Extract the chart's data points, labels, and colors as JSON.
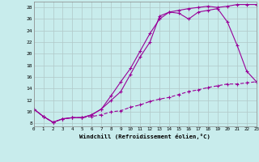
{
  "xlabel": "Windchill (Refroidissement éolien,°C)",
  "bg_color": "#c8ecec",
  "line_color": "#990099",
  "grid_color": "#b0c8c8",
  "line1_x": [
    0,
    1,
    2,
    3,
    4,
    5,
    6,
    7,
    8,
    9,
    10,
    11,
    12,
    13,
    14,
    15,
    16,
    17,
    18,
    19,
    20,
    21,
    22,
    23
  ],
  "line1_y": [
    10.5,
    9.2,
    8.2,
    8.8,
    9.0,
    9.0,
    9.2,
    9.5,
    10.0,
    10.2,
    10.8,
    11.2,
    11.8,
    12.2,
    12.5,
    13.0,
    13.5,
    13.8,
    14.2,
    14.5,
    14.8,
    14.8,
    15.0,
    15.2
  ],
  "line2_x": [
    0,
    1,
    2,
    3,
    4,
    5,
    6,
    7,
    8,
    9,
    10,
    11,
    12,
    13,
    14,
    15,
    16,
    17,
    18,
    19,
    20,
    21,
    22,
    23
  ],
  "line2_y": [
    10.5,
    9.2,
    8.2,
    8.8,
    9.0,
    9.0,
    9.5,
    10.5,
    12.0,
    13.5,
    16.5,
    19.5,
    22.0,
    26.5,
    27.2,
    27.0,
    26.0,
    27.2,
    27.5,
    27.8,
    25.5,
    21.5,
    17.0,
    15.2
  ],
  "line3_x": [
    0,
    1,
    2,
    3,
    4,
    5,
    6,
    7,
    8,
    9,
    10,
    11,
    12,
    13,
    14,
    15,
    16,
    17,
    18,
    19,
    20,
    21,
    22,
    23
  ],
  "line3_y": [
    10.5,
    9.2,
    8.2,
    8.8,
    9.0,
    9.0,
    9.5,
    10.5,
    12.8,
    15.2,
    17.5,
    20.5,
    23.5,
    26.0,
    27.2,
    27.5,
    27.8,
    28.0,
    28.2,
    28.0,
    28.2,
    28.5,
    28.5,
    28.5
  ],
  "xlim": [
    0,
    23
  ],
  "ylim": [
    7.5,
    29
  ],
  "yticks": [
    8,
    10,
    12,
    14,
    16,
    18,
    20,
    22,
    24,
    26,
    28
  ],
  "xticks": [
    0,
    1,
    2,
    3,
    4,
    5,
    6,
    7,
    8,
    9,
    10,
    11,
    12,
    13,
    14,
    15,
    16,
    17,
    18,
    19,
    20,
    21,
    22,
    23
  ]
}
